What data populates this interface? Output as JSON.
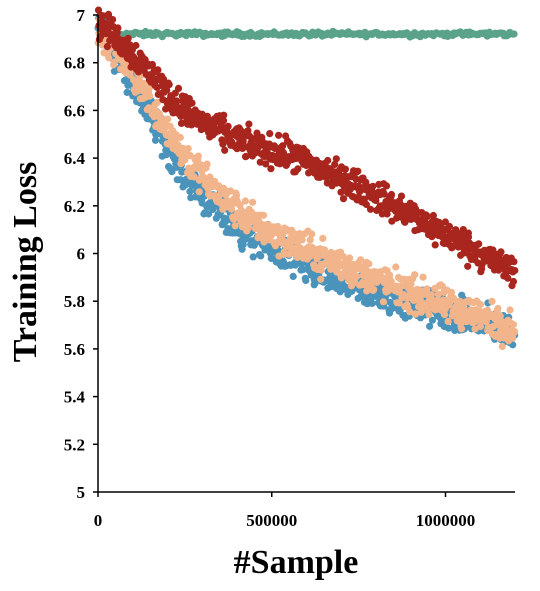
{
  "chart_data": {
    "type": "scatter",
    "title": "",
    "xlabel": "#Sample",
    "ylabel": "Training Loss",
    "xlim": [
      0,
      1200000
    ],
    "ylim": [
      5,
      7
    ],
    "x_ticks": [
      0,
      500000,
      1000000
    ],
    "x_tick_labels": [
      "0",
      "500000",
      "1000000"
    ],
    "y_ticks": [
      5,
      5.2,
      5.4,
      5.6,
      5.8,
      6,
      6.2,
      6.4,
      6.6,
      6.8,
      7
    ],
    "y_tick_labels": [
      "5",
      "5.2",
      "5.4",
      "5.6",
      "5.8",
      "6",
      "6.2",
      "6.4",
      "6.6",
      "6.8",
      "7"
    ],
    "grid": false,
    "legend": "none",
    "series": [
      {
        "color": "#4a93bb",
        "x": [
          0,
          50000,
          100000,
          150000,
          200000,
          250000,
          300000,
          350000,
          400000,
          450000,
          500000,
          550000,
          600000,
          650000,
          700000,
          750000,
          800000,
          850000,
          900000,
          950000,
          1000000,
          1050000,
          1100000,
          1150000,
          1200000
        ],
        "values": [
          6.97,
          6.85,
          6.72,
          6.58,
          6.45,
          6.34,
          6.25,
          6.17,
          6.11,
          6.06,
          6.02,
          5.98,
          5.94,
          5.91,
          5.88,
          5.85,
          5.83,
          5.81,
          5.79,
          5.77,
          5.75,
          5.73,
          5.71,
          5.69,
          5.67
        ]
      },
      {
        "color": "#f2b48a",
        "x": [
          0,
          50000,
          100000,
          150000,
          200000,
          250000,
          300000,
          350000,
          400000,
          450000,
          500000,
          550000,
          600000,
          650000,
          700000,
          750000,
          800000,
          850000,
          900000,
          950000,
          1000000,
          1050000,
          1100000,
          1150000,
          1200000
        ],
        "values": [
          6.94,
          6.86,
          6.76,
          6.64,
          6.52,
          6.41,
          6.32,
          6.24,
          6.18,
          6.13,
          6.09,
          6.05,
          6.01,
          5.98,
          5.95,
          5.92,
          5.89,
          5.86,
          5.83,
          5.81,
          5.78,
          5.76,
          5.74,
          5.71,
          5.69
        ]
      },
      {
        "color": "#a8261e",
        "x": [
          0,
          50000,
          100000,
          150000,
          200000,
          250000,
          300000,
          350000,
          400000,
          450000,
          500000,
          550000,
          600000,
          650000,
          700000,
          750000,
          800000,
          850000,
          900000,
          950000,
          1000000,
          1050000,
          1100000,
          1150000,
          1200000
        ],
        "values": [
          6.97,
          6.91,
          6.84,
          6.76,
          6.67,
          6.6,
          6.55,
          6.51,
          6.48,
          6.45,
          6.43,
          6.41,
          6.38,
          6.35,
          6.31,
          6.28,
          6.24,
          6.2,
          6.16,
          6.12,
          6.08,
          6.04,
          6.0,
          5.96,
          5.92
        ]
      },
      {
        "color": "#5aa38a",
        "x": [
          0,
          1200000
        ],
        "values": [
          6.92,
          6.92
        ]
      }
    ]
  }
}
